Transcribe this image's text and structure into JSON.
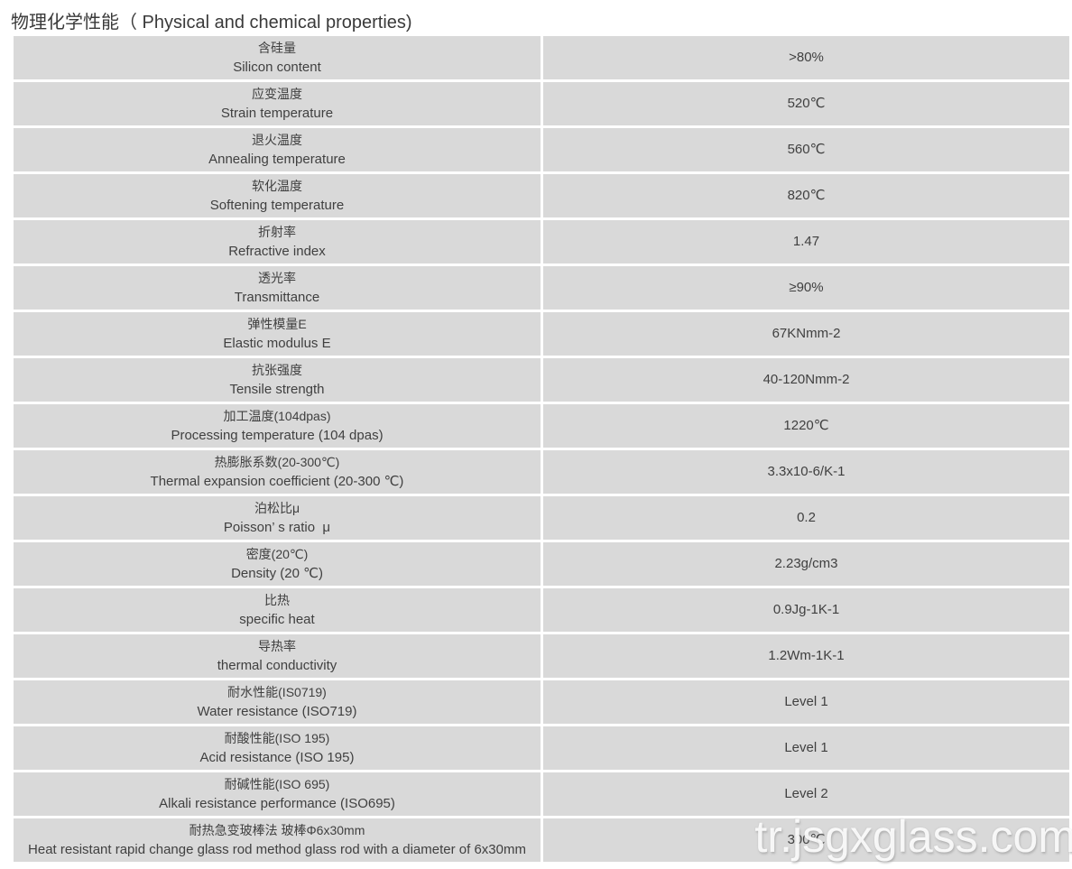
{
  "page": {
    "title": "物理化学性能（ Physical and chemical properties)",
    "watermark": "tr.jsgxglass.com"
  },
  "colors": {
    "row_bg": "#d9d9d9",
    "cell_text": "#404040",
    "title_text": "#3a3a3a",
    "page_bg": "#ffffff",
    "watermark_text": "#ffffff"
  },
  "table": {
    "rows": [
      {
        "zh": "含硅量",
        "en": "Silicon content",
        "value": ">80%"
      },
      {
        "zh": "应变温度",
        "en": "Strain temperature",
        "value": "520℃"
      },
      {
        "zh": "退火温度",
        "en": "Annealing temperature",
        "value": "560℃"
      },
      {
        "zh": "软化温度",
        "en": "Softening temperature",
        "value": "820℃"
      },
      {
        "zh": "折射率",
        "en": "Refractive index",
        "value": "1.47"
      },
      {
        "zh": "透光率",
        "en": "Transmittance",
        "value": "≥90%"
      },
      {
        "zh": "弹性模量E",
        "en": "Elastic modulus E",
        "value": "67KNmm-2"
      },
      {
        "zh": "抗张强度",
        "en": "Tensile strength",
        "value": "40-120Nmm-2"
      },
      {
        "zh": "加工温度(104dpas)",
        "en": "Processing temperature (104 dpas)",
        "value": "1220℃"
      },
      {
        "zh": "热膨胀系数(20-300℃)",
        "en": "Thermal expansion coefficient (20-300 ℃)",
        "value": "3.3x10-6/K-1"
      },
      {
        "zh": "泊松比μ",
        "en": "Poisson’ s ratio  μ",
        "value": "0.2"
      },
      {
        "zh": "密度(20℃)",
        "en": "Density (20 ℃)",
        "value": "2.23g/cm3"
      },
      {
        "zh": "比热",
        "en": "specific heat",
        "value": "0.9Jg-1K-1"
      },
      {
        "zh": "导热率",
        "en": "thermal conductivity",
        "value": "1.2Wm-1K-1"
      },
      {
        "zh": "耐水性能(IS0719)",
        "en": "Water resistance (ISO719)",
        "value": "Level 1"
      },
      {
        "zh": "耐酸性能(ISO 195)",
        "en": "Acid resistance (ISO 195)",
        "value": "Level 1"
      },
      {
        "zh": "耐碱性能(ISO 695)",
        "en": "Alkali resistance performance (ISO695)",
        "value": "Level 2"
      },
      {
        "zh": "耐热急变玻棒法 玻棒Φ6x30mm",
        "en": "Heat resistant rapid change glass rod method glass rod with a diameter of 6x30mm",
        "value": "300℃"
      }
    ]
  }
}
